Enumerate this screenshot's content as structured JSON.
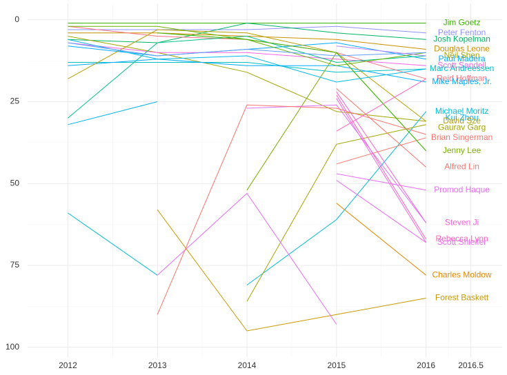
{
  "chart_data": {
    "type": "line",
    "title": "",
    "xlabel": "",
    "ylabel": "",
    "xlim": [
      2011.55,
      2016.85
    ],
    "ylim": [
      103,
      -5
    ],
    "y_reversed": true,
    "grid": true,
    "legend": "labels at right",
    "x_ticks": [
      2012,
      2013,
      2014,
      2015,
      2016,
      2016.5
    ],
    "x_tick_labels": [
      "2012",
      "2013",
      "2014",
      "2015",
      "2016",
      "2016.5"
    ],
    "y_ticks": [
      0,
      25,
      50,
      75,
      100
    ],
    "y_tick_labels": [
      "0",
      "25",
      "50",
      "75",
      "100"
    ],
    "label_x": 2016.4,
    "series": [
      {
        "name": "Jim Goetz",
        "color": "#3bb300",
        "points": [
          [
            2012,
            1
          ],
          [
            2013,
            1
          ],
          [
            2014,
            1
          ],
          [
            2015,
            1
          ],
          [
            2016,
            1
          ]
        ],
        "label_y": 1
      },
      {
        "name": "Peter Fenton",
        "color": "#8f91ff",
        "points": [
          [
            2012,
            3
          ],
          [
            2013,
            3
          ],
          [
            2014,
            3
          ],
          [
            2015,
            2
          ],
          [
            2016,
            4
          ]
        ],
        "label_y": 4
      },
      {
        "name": "Josh Kopelman",
        "color": "#00b463",
        "points": [
          [
            2012,
            6
          ],
          [
            2013,
            7
          ],
          [
            2014,
            1
          ],
          [
            2015,
            4
          ],
          [
            2016,
            6
          ]
        ],
        "label_y": 6
      },
      {
        "name": "Douglas Leone",
        "color": "#c98e00",
        "points": [
          [
            2012,
            4
          ],
          [
            2013,
            4
          ],
          [
            2014,
            5
          ],
          [
            2015,
            6
          ],
          [
            2016,
            9
          ]
        ],
        "label_y": 9
      },
      {
        "name": "Neil Shen",
        "color": "#a3a500",
        "points": [
          [
            2012,
            5
          ],
          [
            2013,
            10
          ],
          [
            2014,
            16
          ],
          [
            2015,
            28
          ],
          [
            2016,
            31
          ]
        ],
        "label_y": 11
      },
      {
        "name": "Paul Madera",
        "color": "#00a9ff",
        "points": [
          [
            2012,
            8
          ],
          [
            2013,
            11
          ],
          [
            2014,
            9
          ],
          [
            2015,
            7
          ],
          [
            2016,
            12
          ]
        ],
        "label_y": 12
      },
      {
        "name": "Scott Sandell",
        "color": "#f564e3",
        "points": [
          [
            2012,
            7
          ],
          [
            2013,
            10
          ],
          [
            2014,
            10
          ],
          [
            2015,
            12
          ],
          [
            2016,
            14
          ]
        ],
        "label_y": 14
      },
      {
        "name": "Marc Andreessen",
        "color": "#00bfc4",
        "points": [
          [
            2012,
            13
          ],
          [
            2013,
            13
          ],
          [
            2014,
            13
          ],
          [
            2015,
            16
          ],
          [
            2016,
            15
          ]
        ],
        "label_y": 15
      },
      {
        "name": "Reid Hoffman",
        "color": "#fc717f",
        "points": [
          [
            2012,
            2
          ],
          [
            2013,
            5
          ],
          [
            2014,
            6
          ],
          [
            2015,
            10
          ],
          [
            2016,
            18
          ]
        ],
        "label_y": 18
      },
      {
        "name": "Mike Maples, Jr.",
        "color": "#00abfd",
        "points": [
          [
            2012,
            14
          ],
          [
            2013,
            12
          ],
          [
            2014,
            14
          ],
          [
            2015,
            14
          ],
          [
            2016,
            19
          ]
        ],
        "label_y": 19
      },
      {
        "name": "Michael Moritz",
        "color": "#00bcd8",
        "points": [
          [
            2014,
            81
          ],
          [
            2015,
            61
          ],
          [
            2016,
            28
          ]
        ],
        "label_y": 28
      },
      {
        "name": "Kui Zhou",
        "color": "#00b0f6",
        "points": [
          [
            2012,
            32
          ],
          [
            2013,
            25
          ]
        ],
        "label_y": 30
      },
      {
        "name": "David Sze",
        "color": "#b79f00",
        "points": [
          [
            2012,
            18
          ],
          [
            2013,
            3
          ],
          [
            2014,
            4
          ],
          [
            2015,
            10
          ],
          [
            2016,
            31
          ]
        ],
        "label_y": 31
      },
      {
        "name": "Gaurav Garg",
        "color": "#a3a500",
        "points": [
          [
            2014,
            86
          ],
          [
            2015,
            38
          ],
          [
            2016,
            32
          ]
        ],
        "label_y": 33
      },
      {
        "name": "Brian Singerman",
        "color": "#f8766d",
        "points": [
          [
            2015,
            44
          ],
          [
            2016,
            36
          ]
        ],
        "label_y": 36
      },
      {
        "name": "Jenny Lee",
        "color": "#7cae00",
        "points": [
          [
            2014,
            52
          ],
          [
            2015,
            10
          ],
          [
            2016,
            40
          ]
        ],
        "label_y": 40
      },
      {
        "name": "Alfred Lin",
        "color": "#f8766d",
        "points": [
          [
            2015,
            21
          ],
          [
            2016,
            45
          ]
        ],
        "label_y": 45
      },
      {
        "name": "Promod Haque",
        "color": "#e76bf3",
        "points": [
          [
            2015,
            47
          ],
          [
            2016,
            52
          ]
        ],
        "label_y": 52
      },
      {
        "name": "Steven Ji",
        "color": "#fb61d7",
        "points": [
          [
            2015,
            22
          ],
          [
            2016,
            62
          ]
        ],
        "label_y": 62
      },
      {
        "name": "Rebecca Lynn",
        "color": "#ff62bc",
        "points": [
          [
            2015,
            23
          ],
          [
            2016,
            67
          ]
        ],
        "label_y": 67
      },
      {
        "name": "Scott Shleifer",
        "color": "#e76bf3",
        "points": [
          [
            2015,
            49
          ],
          [
            2016,
            68
          ]
        ],
        "label_y": 68
      },
      {
        "name": "Charles Moldow",
        "color": "#e58700",
        "points": [
          [
            2015,
            56
          ],
          [
            2016,
            78
          ]
        ],
        "label_y": 78
      },
      {
        "name": "Forest Baskett",
        "color": "#c99800",
        "points": [
          [
            2013,
            58
          ],
          [
            2014,
            95
          ],
          [
            2015,
            90
          ],
          [
            2016,
            85
          ]
        ],
        "label_y": 85
      },
      {
        "color": "#00c08b",
        "points": [
          [
            2012,
            30
          ],
          [
            2013,
            7
          ],
          [
            2014,
            5
          ],
          [
            2015,
            13
          ],
          [
            2016,
            11
          ]
        ]
      },
      {
        "color": "#6bb100",
        "points": [
          [
            2012,
            2
          ],
          [
            2013,
            2
          ],
          [
            2014,
            6
          ],
          [
            2015,
            14
          ],
          [
            2016,
            10
          ]
        ]
      },
      {
        "color": "#39b600",
        "points": [
          [
            2013,
            4
          ],
          [
            2014,
            6
          ],
          [
            2015,
            10
          ],
          [
            2016,
            40
          ]
        ]
      },
      {
        "color": "#00bdd0",
        "points": [
          [
            2012,
            59
          ],
          [
            2013,
            78
          ]
        ]
      },
      {
        "color": "#00b8e7",
        "points": [
          [
            2012,
            6
          ],
          [
            2013,
            12
          ],
          [
            2014,
            11
          ],
          [
            2015,
            19
          ],
          [
            2016,
            15
          ]
        ]
      },
      {
        "color": "#619cff",
        "points": [
          [
            2012,
            7
          ],
          [
            2013,
            11
          ],
          [
            2014,
            9
          ],
          [
            2015,
            11
          ],
          [
            2016,
            10
          ]
        ]
      },
      {
        "color": "#e76bf3",
        "points": [
          [
            2013,
            78
          ],
          [
            2014,
            53
          ],
          [
            2015,
            93
          ]
        ]
      },
      {
        "color": "#db72fb",
        "points": [
          [
            2014,
            27
          ],
          [
            2015,
            26
          ],
          [
            2016,
            62
          ]
        ]
      },
      {
        "color": "#f8766d",
        "points": [
          [
            2013,
            90
          ],
          [
            2014,
            26
          ],
          [
            2015,
            27
          ],
          [
            2016,
            35
          ]
        ]
      },
      {
        "color": "#ff61c3",
        "points": [
          [
            2015,
            34
          ],
          [
            2016,
            18
          ]
        ]
      },
      {
        "color": "#ef67eb",
        "points": [
          [
            2015,
            24
          ],
          [
            2016,
            68
          ]
        ]
      },
      {
        "color": "#b983ff",
        "points": [
          [
            2015,
            8
          ],
          [
            2016,
            11
          ]
        ]
      }
    ]
  }
}
